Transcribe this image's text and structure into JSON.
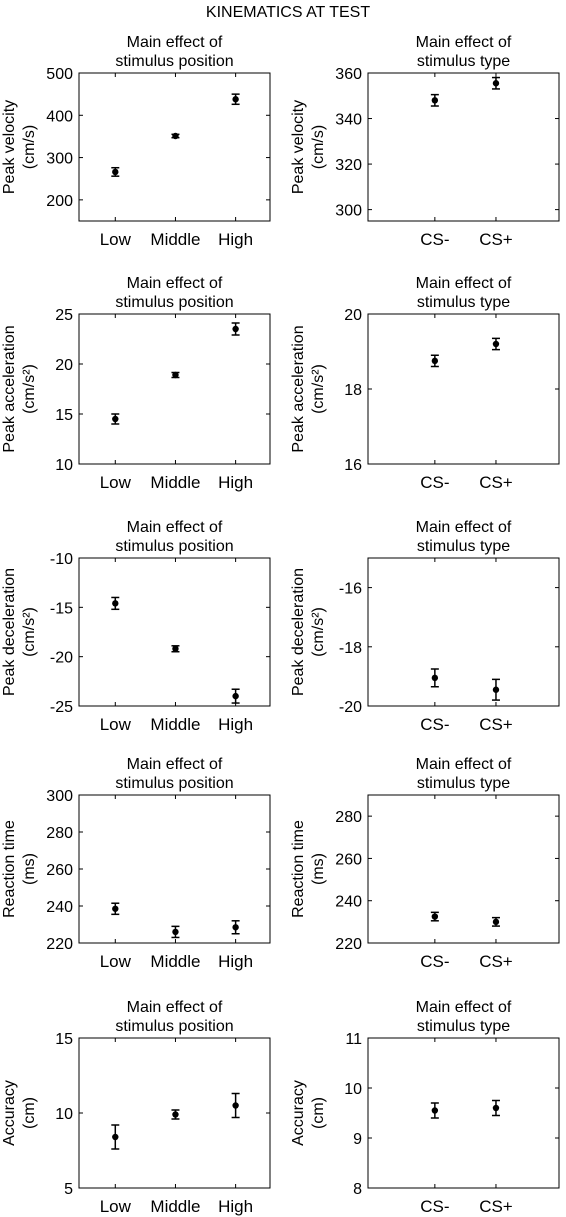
{
  "figure_title": "KINEMATICS AT TEST",
  "chart_data": [
    {
      "type": "scatter",
      "error_bars": true,
      "title": [
        "Main effect of",
        "stimulus position"
      ],
      "ylabel": [
        "Peak velocity",
        "(cm/s)"
      ],
      "categories": [
        "Low",
        "Middle",
        "High"
      ],
      "values": [
        266,
        351,
        438
      ],
      "errors": [
        10,
        4,
        12
      ],
      "ylim": [
        150,
        500
      ],
      "yticks": [
        200,
        300,
        400,
        500
      ],
      "ytick_labels": [
        "200",
        "300",
        "400",
        "500"
      ]
    },
    {
      "type": "scatter",
      "error_bars": true,
      "title": [
        "Main effect of",
        "stimulus type"
      ],
      "ylabel": [
        "Peak velocity",
        "(cm/s)"
      ],
      "categories": [
        "CS-",
        "CS+"
      ],
      "values": [
        348,
        355.5
      ],
      "errors": [
        2.5,
        2.5
      ],
      "ylim": [
        295,
        360
      ],
      "yticks": [
        300,
        320,
        340,
        360
      ],
      "ytick_labels": [
        "300",
        "320",
        "340",
        "360"
      ]
    },
    {
      "type": "scatter",
      "error_bars": true,
      "title": [
        "Main effect of",
        "stimulus position"
      ],
      "ylabel": [
        "Peak acceleration",
        "(cm/s²)"
      ],
      "categories": [
        "Low",
        "Middle",
        "High"
      ],
      "values": [
        14.5,
        18.9,
        23.5
      ],
      "errors": [
        0.5,
        0.25,
        0.6
      ],
      "ylim": [
        10,
        25
      ],
      "yticks": [
        10,
        15,
        20,
        25
      ],
      "ytick_labels": [
        "10",
        "15",
        "20",
        "25"
      ]
    },
    {
      "type": "scatter",
      "error_bars": true,
      "title": [
        "Main effect of",
        "stimulus type"
      ],
      "ylabel": [
        "Peak acceleration",
        "(cm/s²)"
      ],
      "categories": [
        "CS-",
        "CS+"
      ],
      "values": [
        18.75,
        19.2
      ],
      "errors": [
        0.15,
        0.15
      ],
      "ylim": [
        16,
        20
      ],
      "yticks": [
        16,
        18,
        20
      ],
      "ytick_labels": [
        "16",
        "18",
        "20"
      ]
    },
    {
      "type": "scatter",
      "error_bars": true,
      "title": [
        "Main effect of",
        "stimulus position"
      ],
      "ylabel": [
        "Peak deceleration",
        "(cm/s²)"
      ],
      "categories": [
        "Low",
        "Middle",
        "High"
      ],
      "values": [
        -14.6,
        -19.2,
        -24
      ],
      "errors": [
        0.6,
        0.3,
        0.7
      ],
      "ylim": [
        -25,
        -10
      ],
      "yticks": [
        -25,
        -20,
        -15,
        -10
      ],
      "ytick_labels": [
        "-25",
        "-20",
        "-15",
        "-10"
      ]
    },
    {
      "type": "scatter",
      "error_bars": true,
      "title": [
        "Main effect of",
        "stimulus type"
      ],
      "ylabel": [
        "Peak deceleration",
        "(cm/s²)"
      ],
      "categories": [
        "CS-",
        "CS+"
      ],
      "values": [
        -19.05,
        -19.45
      ],
      "errors": [
        0.3,
        0.35
      ],
      "ylim": [
        -20,
        -15
      ],
      "yticks": [
        -20,
        -18,
        -16
      ],
      "ytick_labels": [
        "-20",
        "-18",
        "-16"
      ]
    },
    {
      "type": "scatter",
      "error_bars": true,
      "title": [
        "Main effect of",
        "stimulus position"
      ],
      "ylabel": [
        "Reaction time",
        "(ms)"
      ],
      "categories": [
        "Low",
        "Middle",
        "High"
      ],
      "values": [
        238.5,
        226,
        228.5
      ],
      "errors": [
        3,
        3,
        3.5
      ],
      "ylim": [
        220,
        300
      ],
      "yticks": [
        220,
        240,
        260,
        280,
        300
      ],
      "ytick_labels": [
        "220",
        "240",
        "260",
        "280",
        "300"
      ]
    },
    {
      "type": "scatter",
      "error_bars": true,
      "title": [
        "Main effect of",
        "stimulus type"
      ],
      "ylabel": [
        "Reaction time",
        "(ms)"
      ],
      "categories": [
        "CS-",
        "CS+"
      ],
      "values": [
        232.5,
        230
      ],
      "errors": [
        2,
        2
      ],
      "ylim": [
        220,
        290
      ],
      "yticks": [
        220,
        240,
        260,
        280
      ],
      "ytick_labels": [
        "220",
        "240",
        "260",
        "280"
      ]
    },
    {
      "type": "scatter",
      "error_bars": true,
      "title": [
        "Main effect of",
        "stimulus position"
      ],
      "ylabel": [
        "Accuracy",
        "(cm)"
      ],
      "categories": [
        "Low",
        "Middle",
        "High"
      ],
      "values": [
        8.4,
        9.9,
        10.5
      ],
      "errors": [
        0.8,
        0.3,
        0.8
      ],
      "ylim": [
        5,
        15
      ],
      "yticks": [
        5,
        10,
        15
      ],
      "ytick_labels": [
        "5",
        "10",
        "15"
      ]
    },
    {
      "type": "scatter",
      "error_bars": true,
      "title": [
        "Main effect of",
        "stimulus type"
      ],
      "ylabel": [
        "Accuracy",
        "(cm)"
      ],
      "categories": [
        "CS-",
        "CS+"
      ],
      "values": [
        9.55,
        9.6
      ],
      "errors": [
        0.15,
        0.15
      ],
      "ylim": [
        8,
        11
      ],
      "yticks": [
        8,
        9,
        10,
        11
      ],
      "ytick_labels": [
        "8",
        "9",
        "10",
        "11"
      ]
    }
  ]
}
